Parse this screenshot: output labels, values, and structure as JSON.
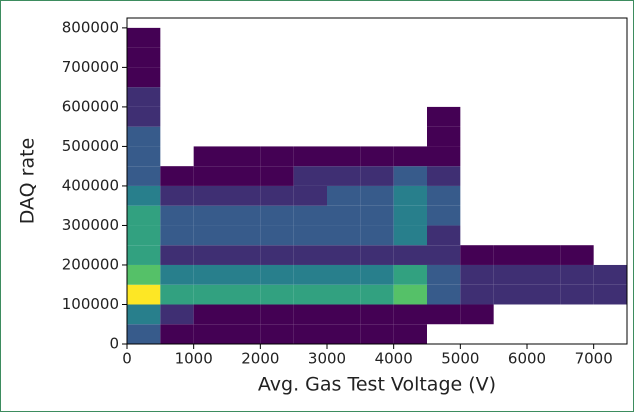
{
  "chart_data": {
    "type": "hist2d",
    "xlabel": "Avg. Gas Test Voltage (V)",
    "ylabel": "DAQ rate",
    "xlim": [
      0,
      7500
    ],
    "ylim": [
      0,
      825000
    ],
    "xticks": [
      0,
      1000,
      2000,
      3000,
      4000,
      5000,
      6000,
      7000
    ],
    "yticks": [
      0,
      100000,
      200000,
      300000,
      400000,
      500000,
      600000,
      700000,
      800000
    ],
    "xbins": [
      0,
      500,
      1000,
      1500,
      2000,
      2500,
      3000,
      3500,
      4000,
      4500,
      5000,
      5500,
      6000,
      6500,
      7000,
      7500
    ],
    "ybins": [
      0,
      50000,
      100000,
      150000,
      200000,
      250000,
      300000,
      350000,
      400000,
      450000,
      500000,
      550000,
      600000,
      650000,
      700000,
      750000,
      800000
    ],
    "counts": [
      [
        3,
        1,
        1,
        1,
        1,
        1,
        1,
        1,
        1,
        0,
        0,
        0,
        0,
        0,
        0
      ],
      [
        4,
        2,
        1,
        1,
        1,
        1,
        1,
        1,
        1,
        1,
        1,
        0,
        0,
        0,
        0
      ],
      [
        8,
        5,
        5,
        5,
        5,
        5,
        5,
        5,
        6,
        3,
        2,
        2,
        2,
        2,
        2
      ],
      [
        6,
        4,
        4,
        4,
        4,
        4,
        4,
        4,
        5,
        3,
        2,
        2,
        2,
        2,
        2
      ],
      [
        5,
        2,
        2,
        2,
        2,
        2,
        2,
        2,
        2,
        2,
        1,
        1,
        1,
        1,
        0
      ],
      [
        5,
        3,
        3,
        3,
        3,
        3,
        3,
        3,
        4,
        2,
        0,
        0,
        0,
        0,
        0
      ],
      [
        5,
        3,
        3,
        3,
        3,
        3,
        3,
        3,
        4,
        3,
        0,
        0,
        0,
        0,
        0
      ],
      [
        4,
        2,
        2,
        2,
        2,
        2,
        3,
        3,
        4,
        3,
        0,
        0,
        0,
        0,
        0
      ],
      [
        3,
        1,
        1,
        1,
        1,
        2,
        2,
        2,
        3,
        2,
        0,
        0,
        0,
        0,
        0
      ],
      [
        3,
        0,
        1,
        1,
        1,
        1,
        1,
        1,
        1,
        1,
        0,
        0,
        0,
        0,
        0
      ],
      [
        3,
        0,
        0,
        0,
        0,
        0,
        0,
        0,
        0,
        1,
        0,
        0,
        0,
        0,
        0
      ],
      [
        2,
        0,
        0,
        0,
        0,
        0,
        0,
        0,
        0,
        1,
        0,
        0,
        0,
        0,
        0
      ],
      [
        2,
        0,
        0,
        0,
        0,
        0,
        0,
        0,
        0,
        0,
        0,
        0,
        0,
        0,
        0
      ],
      [
        1,
        0,
        0,
        0,
        0,
        0,
        0,
        0,
        0,
        0,
        0,
        0,
        0,
        0,
        0
      ],
      [
        1,
        0,
        0,
        0,
        0,
        0,
        0,
        0,
        0,
        0,
        0,
        0,
        0,
        0,
        0
      ],
      [
        1,
        0,
        0,
        0,
        0,
        0,
        0,
        0,
        0,
        0,
        0,
        0,
        0,
        0,
        0
      ]
    ],
    "colormap": [
      "#440154",
      "#3b528b",
      "#21918c",
      "#5ec962",
      "#fde725"
    ]
  }
}
